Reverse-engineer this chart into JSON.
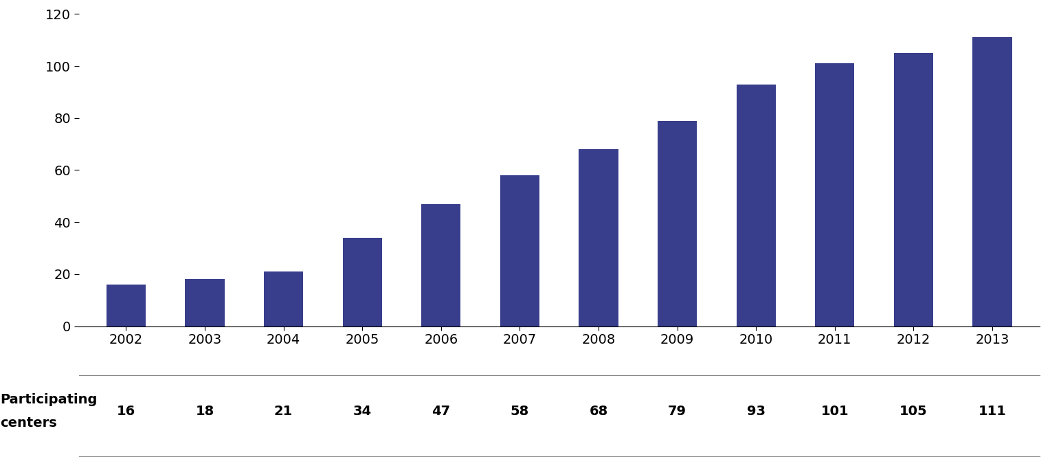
{
  "years": [
    "2002",
    "2003",
    "2004",
    "2005",
    "2006",
    "2007",
    "2008",
    "2009",
    "2010",
    "2011",
    "2012",
    "2013"
  ],
  "values": [
    16,
    18,
    21,
    34,
    47,
    58,
    68,
    79,
    93,
    101,
    105,
    111
  ],
  "bar_color": "#383d8c",
  "ylim": [
    0,
    120
  ],
  "yticks": [
    0,
    20,
    40,
    60,
    80,
    100,
    120
  ],
  "background_color": "#ffffff",
  "bar_width": 0.5,
  "fontsize": 14,
  "table_label_line1": "Participating",
  "table_label_line2": "centers"
}
